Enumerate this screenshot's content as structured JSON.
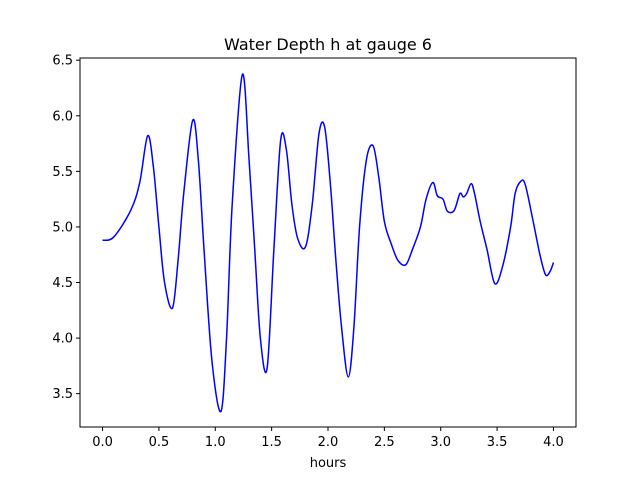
{
  "chart_data": {
    "type": "line",
    "title": "Water Depth h at gauge 6",
    "xlabel": "hours",
    "ylabel": "",
    "xlim": [
      -0.2,
      4.2
    ],
    "ylim": [
      3.2,
      6.52
    ],
    "x_ticks": [
      0.0,
      0.5,
      1.0,
      1.5,
      2.0,
      2.5,
      3.0,
      3.5,
      4.0
    ],
    "x_tick_labels": [
      "0.0",
      "0.5",
      "1.0",
      "1.5",
      "2.0",
      "2.5",
      "3.0",
      "3.5",
      "4.0"
    ],
    "y_ticks": [
      3.5,
      4.0,
      4.5,
      5.0,
      5.5,
      6.0,
      6.5
    ],
    "y_tick_labels": [
      "3.5",
      "4.0",
      "4.5",
      "5.0",
      "5.5",
      "6.0",
      "6.5"
    ],
    "grid": false,
    "legend": "none",
    "series": [
      {
        "color": "#0000ff",
        "x": [
          0.0,
          0.1,
          0.25,
          0.33,
          0.4,
          0.45,
          0.5,
          0.55,
          0.62,
          0.67,
          0.72,
          0.8,
          0.85,
          0.9,
          0.97,
          1.05,
          1.1,
          1.15,
          1.24,
          1.3,
          1.35,
          1.4,
          1.46,
          1.52,
          1.58,
          1.63,
          1.68,
          1.73,
          1.8,
          1.86,
          1.92,
          1.97,
          2.02,
          2.07,
          2.12,
          2.18,
          2.23,
          2.28,
          2.34,
          2.4,
          2.45,
          2.5,
          2.56,
          2.62,
          2.69,
          2.75,
          2.82,
          2.87,
          2.93,
          2.97,
          3.02,
          3.06,
          3.12,
          3.17,
          3.2,
          3.23,
          3.27,
          3.3,
          3.35,
          3.41,
          3.48,
          3.55,
          3.62,
          3.66,
          3.71,
          3.75,
          3.82,
          3.88,
          3.93,
          3.97,
          4.0
        ],
        "values": [
          4.88,
          4.91,
          5.15,
          5.4,
          5.82,
          5.55,
          5.0,
          4.5,
          4.27,
          4.7,
          5.3,
          5.96,
          5.6,
          4.8,
          3.8,
          3.34,
          4.0,
          5.2,
          6.37,
          5.6,
          4.8,
          4.0,
          3.73,
          4.8,
          5.78,
          5.7,
          5.2,
          4.9,
          4.82,
          5.2,
          5.84,
          5.9,
          5.4,
          4.7,
          4.1,
          3.65,
          4.1,
          5.0,
          5.6,
          5.73,
          5.45,
          5.05,
          4.85,
          4.7,
          4.66,
          4.8,
          5.0,
          5.25,
          5.4,
          5.28,
          5.25,
          5.14,
          5.15,
          5.3,
          5.27,
          5.3,
          5.39,
          5.3,
          5.05,
          4.8,
          4.49,
          4.65,
          5.0,
          5.3,
          5.41,
          5.38,
          5.05,
          4.75,
          4.57,
          4.6,
          4.68
        ]
      }
    ]
  }
}
